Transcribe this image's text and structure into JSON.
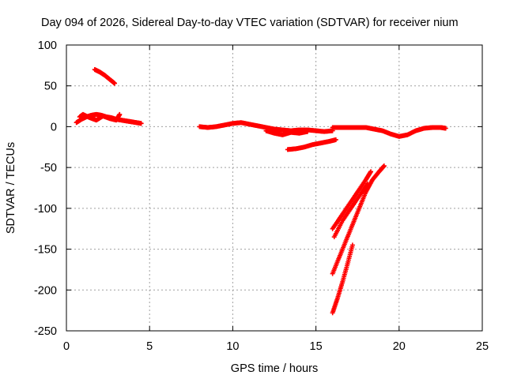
{
  "chart_data": {
    "type": "scatter",
    "title": "Day 094 of 2026, Sidereal Day-to-day VTEC variation (SDTVAR) for receiver nium",
    "xlabel": "GPS time / hours",
    "ylabel": "SDTVAR / TECUs",
    "xlim": [
      0,
      25
    ],
    "ylim": [
      -250,
      100
    ],
    "xticks": [
      "0",
      "5",
      "10",
      "15",
      "20",
      "25"
    ],
    "yticks": [
      "100",
      "50",
      "0",
      "-50",
      "-100",
      "-150",
      "-200",
      "-250"
    ],
    "grid": true,
    "legend": "none",
    "marker": "plus",
    "color": "#ff0000",
    "series": [
      {
        "x": [
          0.6,
          0.9,
          1.2,
          1.5,
          1.8,
          2.1,
          2.4,
          2.7,
          3.0,
          3.3,
          3.6,
          3.9,
          4.2,
          4.5
        ],
        "y": [
          5,
          9,
          12,
          14,
          15,
          14,
          12,
          11,
          9,
          8,
          7,
          6,
          5,
          4
        ]
      },
      {
        "x": [
          0.8,
          1.0,
          1.4,
          1.8,
          2.2,
          2.6,
          3.0,
          3.2
        ],
        "y": [
          12,
          15,
          11,
          8,
          13,
          10,
          8,
          15
        ]
      },
      {
        "x": [
          1.7,
          2.0,
          2.3,
          2.6,
          2.9
        ],
        "y": [
          70,
          67,
          63,
          58,
          53
        ]
      },
      {
        "x": [
          8.0,
          8.5,
          9.0,
          9.5,
          10.0,
          10.5,
          11.0,
          11.5,
          12.0,
          12.5,
          13.0,
          13.5,
          14.0,
          14.5,
          15.0,
          15.5,
          16.0
        ],
        "y": [
          0,
          -1,
          0,
          2,
          4,
          5,
          3,
          1,
          -1,
          -3,
          -4,
          -5,
          -4,
          -4,
          -5,
          -6,
          -5
        ]
      },
      {
        "x": [
          12.0,
          12.5,
          13.0,
          13.5,
          14.0,
          14.5
        ],
        "y": [
          -5,
          -8,
          -10,
          -7,
          -8,
          -6
        ]
      },
      {
        "x": [
          13.3,
          13.8,
          14.3,
          14.8,
          15.3,
          15.8,
          16.2
        ],
        "y": [
          -28,
          -27,
          -25,
          -22,
          -20,
          -18,
          -16
        ]
      },
      {
        "x": [
          16.0,
          16.5,
          17.0,
          17.5,
          18.0,
          18.5,
          19.0,
          19.5,
          20.0,
          20.5,
          21.0,
          21.5,
          22.0,
          22.5,
          22.8
        ],
        "y": [
          -1,
          -1,
          -1,
          -1,
          -1,
          -3,
          -5,
          -9,
          -12,
          -10,
          -5,
          -2,
          -1,
          -1,
          -2
        ]
      },
      {
        "x": [
          16.0,
          16.5,
          17.0,
          17.5,
          18.0,
          18.3
        ],
        "y": [
          -125,
          -110,
          -95,
          -80,
          -65,
          -55
        ]
      },
      {
        "x": [
          16.1,
          16.6,
          17.1,
          17.6,
          18.1
        ],
        "y": [
          -135,
          -115,
          -100,
          -85,
          -70
        ]
      },
      {
        "x": [
          16.0,
          16.4,
          16.8,
          17.2,
          17.6,
          18.0,
          18.4,
          18.8,
          19.1
        ],
        "y": [
          -180,
          -160,
          -140,
          -120,
          -100,
          -80,
          -65,
          -55,
          -48
        ]
      },
      {
        "x": [
          16.0,
          16.3,
          16.6,
          16.9,
          17.2
        ],
        "y": [
          -228,
          -210,
          -190,
          -168,
          -145
        ]
      }
    ]
  }
}
